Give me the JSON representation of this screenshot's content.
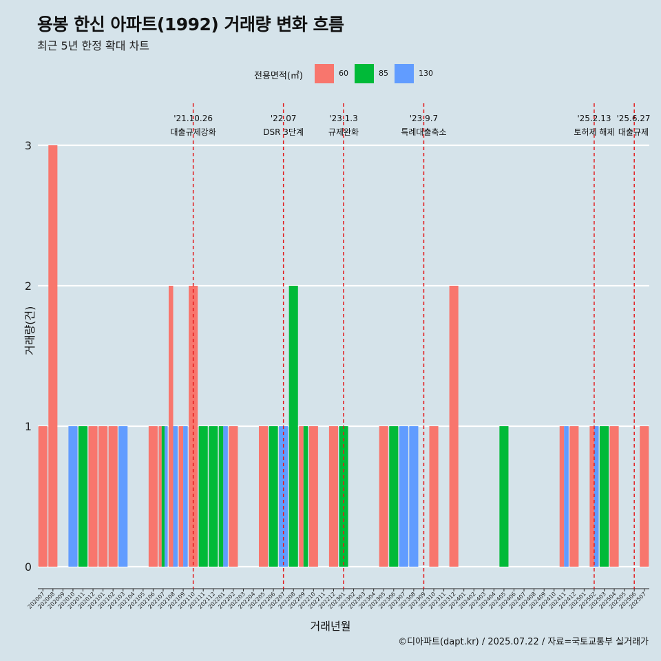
{
  "chart_data": {
    "type": "bar",
    "title": "용봉 한신 아파트(1992) 거래량 변화 흐름",
    "subtitle": "최근 5년 한정 확대 차트",
    "xlabel": "거래년월",
    "ylabel": "거래량(건)",
    "caption": "©디아파트(dapt.kr) / 2025.07.22 / 자료=국토교통부 실거래가",
    "legend_title": "전용면적(㎡)",
    "legend_position": "top",
    "grid": true,
    "ylim": [
      0,
      3
    ],
    "yticks": [
      0,
      1,
      2,
      3
    ],
    "colors": {
      "60": "#f8766d",
      "85": "#00ba38",
      "130": "#619cff"
    },
    "categories": [
      "202007",
      "202008",
      "202009",
      "202010",
      "202011",
      "202012",
      "202101",
      "202102",
      "202103",
      "202104",
      "202105",
      "202106",
      "202107",
      "202108",
      "202109",
      "202110",
      "202111",
      "202112",
      "202201",
      "202202",
      "202203",
      "202204",
      "202205",
      "202206",
      "202207",
      "202208",
      "202209",
      "202210",
      "202211",
      "202212",
      "202301",
      "202302",
      "202303",
      "202304",
      "202305",
      "202306",
      "202307",
      "202308",
      "202309",
      "202310",
      "202311",
      "202312",
      "202401",
      "202402",
      "202403",
      "202404",
      "202405",
      "202406",
      "202407",
      "202408",
      "202409",
      "202410",
      "202411",
      "202412",
      "202501",
      "202502",
      "202503",
      "202504",
      "202505",
      "202506",
      "202507"
    ],
    "series": [
      {
        "name": "60",
        "values": [
          1,
          3,
          0,
          0,
          0,
          1,
          1,
          1,
          0,
          0,
          0,
          1,
          1,
          2,
          1,
          2,
          0,
          0,
          0,
          1,
          0,
          0,
          1,
          0,
          0,
          0,
          1,
          1,
          0,
          1,
          0,
          0,
          0,
          0,
          1,
          0,
          0,
          0,
          0,
          1,
          0,
          2,
          0,
          0,
          0,
          0,
          0,
          0,
          0,
          0,
          0,
          0,
          1,
          1,
          0,
          1,
          0,
          1,
          0,
          0,
          1
        ]
      },
      {
        "name": "85",
        "values": [
          0,
          0,
          0,
          0,
          1,
          0,
          0,
          0,
          0,
          0,
          0,
          0,
          1,
          0,
          0,
          0,
          1,
          1,
          1,
          0,
          0,
          0,
          0,
          1,
          0,
          2,
          1,
          0,
          0,
          0,
          1,
          0,
          0,
          0,
          0,
          1,
          0,
          0,
          0,
          0,
          0,
          0,
          0,
          0,
          0,
          0,
          1,
          0,
          0,
          0,
          0,
          0,
          0,
          0,
          0,
          0,
          1,
          0,
          0,
          0,
          0
        ]
      },
      {
        "name": "130",
        "values": [
          0,
          0,
          0,
          1,
          0,
          0,
          0,
          0,
          1,
          0,
          0,
          0,
          1,
          1,
          1,
          0,
          0,
          0,
          1,
          0,
          0,
          0,
          0,
          0,
          1,
          0,
          0,
          0,
          0,
          0,
          0,
          0,
          0,
          0,
          0,
          0,
          1,
          1,
          0,
          0,
          0,
          0,
          0,
          0,
          0,
          0,
          0,
          0,
          0,
          0,
          0,
          0,
          1,
          0,
          0,
          1,
          0,
          0,
          0,
          0,
          0
        ]
      }
    ],
    "annotations": [
      {
        "x": "202110",
        "date": "'21.10.26",
        "label": "대출규제강화"
      },
      {
        "x": "202207",
        "date": "'22.07",
        "label": "DSR 3단계"
      },
      {
        "x": "202301",
        "date": "'23.1.3",
        "label": "규제완화"
      },
      {
        "x": "202309",
        "date": "'23.9.7",
        "label": "특례대출축소"
      },
      {
        "x": "202502",
        "date": "'25.2.13",
        "label": "토허제 해제"
      },
      {
        "x": "202506",
        "date": "'25.6.27",
        "label": "대출규제"
      }
    ]
  }
}
